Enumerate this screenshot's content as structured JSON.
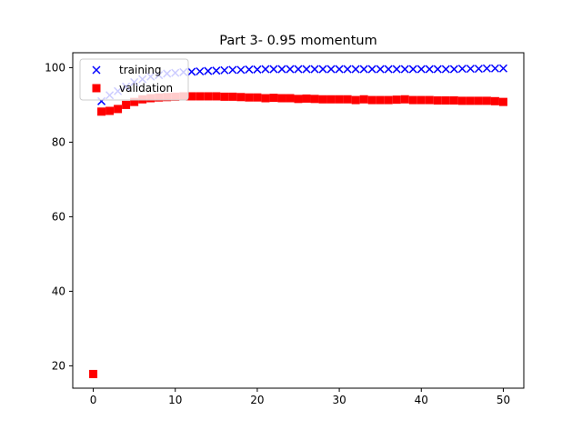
{
  "chart_data": {
    "type": "scatter",
    "title": "Part 3- 0.95 momentum",
    "xlabel": "",
    "ylabel": "",
    "xlim": [
      -2.5,
      52.5
    ],
    "ylim": [
      14,
      104
    ],
    "xticks": [
      0,
      10,
      20,
      30,
      40,
      50
    ],
    "yticks": [
      20,
      40,
      60,
      80,
      100
    ],
    "grid": false,
    "legend_position": "top-left",
    "series": [
      {
        "name": "training",
        "marker": "x",
        "color": "#0000ff",
        "x": [
          1,
          2,
          3,
          4,
          5,
          6,
          7,
          8,
          9,
          10,
          11,
          12,
          13,
          14,
          15,
          16,
          17,
          18,
          19,
          20,
          21,
          22,
          23,
          24,
          25,
          26,
          27,
          28,
          29,
          30,
          31,
          32,
          33,
          34,
          35,
          36,
          37,
          38,
          39,
          40,
          41,
          42,
          43,
          44,
          45,
          46,
          47,
          48,
          49,
          50
        ],
        "y": [
          91.0,
          92.6,
          93.7,
          94.9,
          96.1,
          96.9,
          97.6,
          98.0,
          98.4,
          98.6,
          98.8,
          98.9,
          99.0,
          99.1,
          99.2,
          99.3,
          99.4,
          99.4,
          99.5,
          99.5,
          99.6,
          99.6,
          99.6,
          99.6,
          99.6,
          99.6,
          99.6,
          99.6,
          99.6,
          99.6,
          99.6,
          99.6,
          99.6,
          99.6,
          99.6,
          99.6,
          99.6,
          99.6,
          99.6,
          99.6,
          99.6,
          99.6,
          99.6,
          99.6,
          99.7,
          99.7,
          99.7,
          99.8,
          99.8,
          99.8
        ]
      },
      {
        "name": "validation",
        "marker": "s",
        "color": "#ff0000",
        "x": [
          0,
          1,
          2,
          3,
          4,
          5,
          6,
          7,
          8,
          9,
          10,
          11,
          12,
          13,
          14,
          15,
          16,
          17,
          18,
          19,
          20,
          21,
          22,
          23,
          24,
          25,
          26,
          27,
          28,
          29,
          30,
          31,
          32,
          33,
          34,
          35,
          36,
          37,
          38,
          39,
          40,
          41,
          42,
          43,
          44,
          45,
          46,
          47,
          48,
          49,
          50
        ],
        "y": [
          17.8,
          88.2,
          88.4,
          88.9,
          90.0,
          90.8,
          91.5,
          91.8,
          92.0,
          92.1,
          92.2,
          92.3,
          92.3,
          92.3,
          92.3,
          92.3,
          92.2,
          92.2,
          92.1,
          92.0,
          92.0,
          91.8,
          91.9,
          91.8,
          91.8,
          91.6,
          91.7,
          91.6,
          91.5,
          91.5,
          91.5,
          91.5,
          91.3,
          91.5,
          91.3,
          91.3,
          91.3,
          91.4,
          91.5,
          91.3,
          91.3,
          91.3,
          91.2,
          91.2,
          91.2,
          91.1,
          91.1,
          91.1,
          91.1,
          91.0,
          90.8
        ]
      }
    ]
  }
}
